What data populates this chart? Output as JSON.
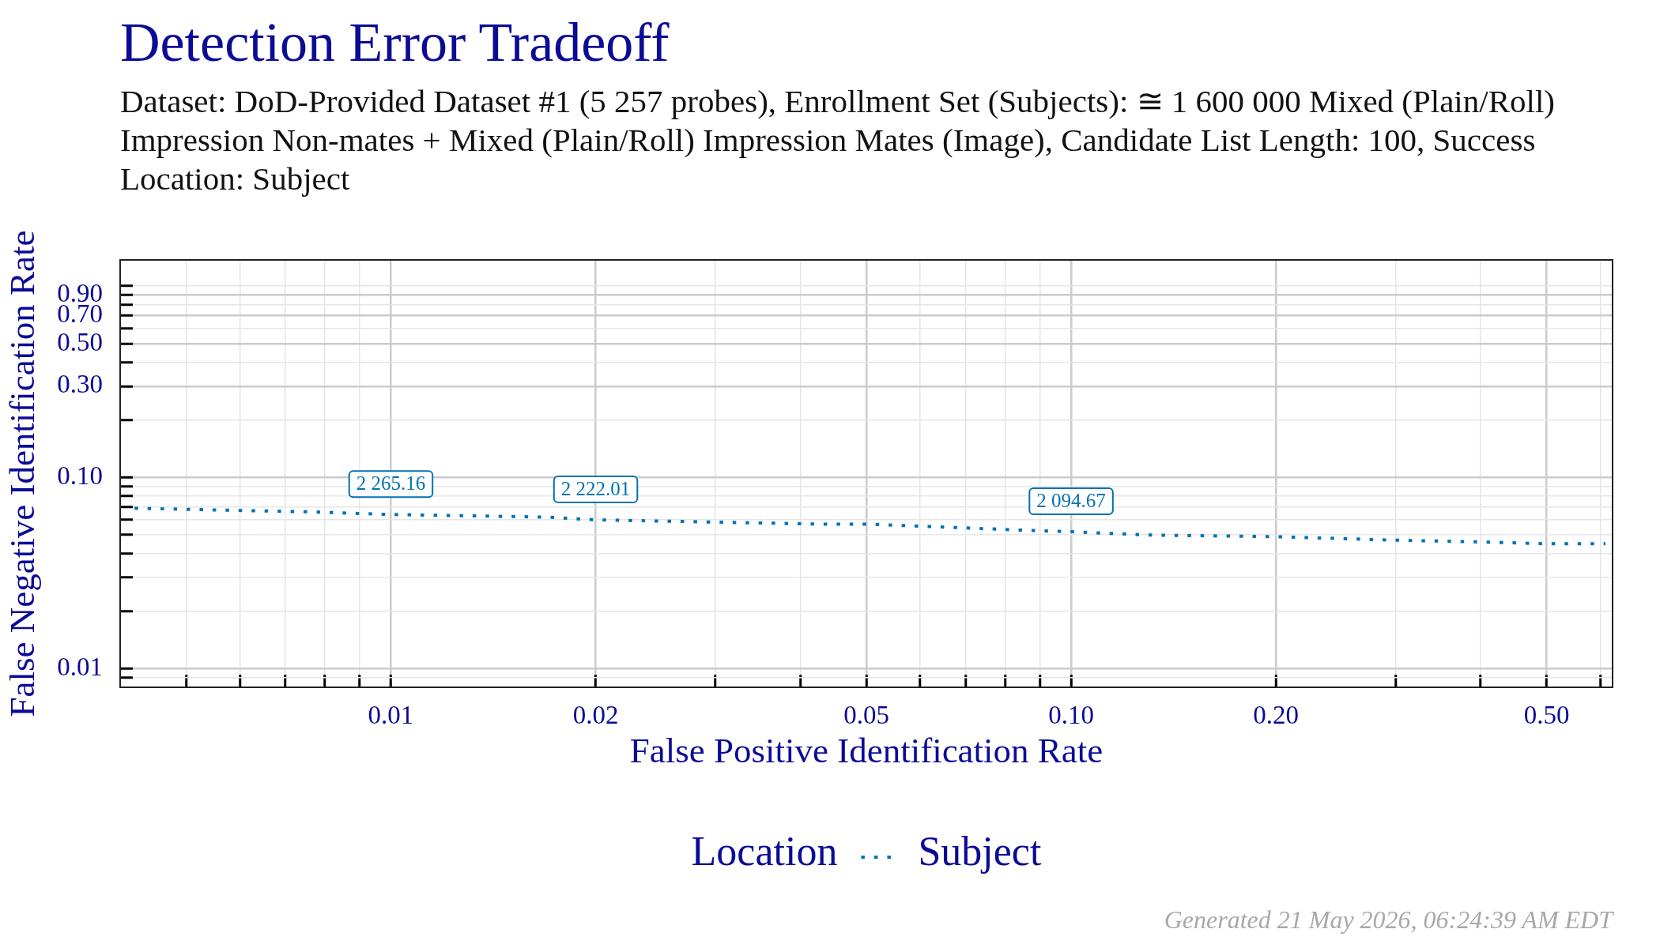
{
  "chart_data": {
    "type": "line",
    "title": "Detection Error Tradeoff",
    "subtitle": "Dataset: DoD-Provided Dataset #1 (5 257 probes), Enrollment Set (Subjects): ≅ 1 600 000 Mixed (Plain/Roll) Impression Non-mates + Mixed (Plain/Roll) Impression Mates (Image), Candidate List Length: 100, Success Location: Subject",
    "xlabel": "False Positive Identification Rate",
    "ylabel": "False Negative Identification Rate",
    "legend_title": "Location",
    "log": "xy",
    "x": [
      0.0042,
      0.0077,
      0.01,
      0.013,
      0.017,
      0.02,
      0.026,
      0.033,
      0.043,
      0.05,
      0.065,
      0.085,
      0.1,
      0.13,
      0.2,
      0.3,
      0.4,
      0.5,
      0.61
    ],
    "series": [
      {
        "name": "Subject",
        "color": "#0072b2",
        "values": [
          0.069,
          0.066,
          0.064,
          0.063,
          0.062,
          0.06,
          0.059,
          0.058,
          0.057,
          0.057,
          0.055,
          0.053,
          0.052,
          0.05,
          0.049,
          0.047,
          0.046,
          0.045,
          0.045
        ]
      }
    ],
    "xlim": [
      0.004,
      0.625
    ],
    "ylim": [
      0.008,
      1.37
    ],
    "xticks": [
      {
        "value": 0.005,
        "label": null
      },
      {
        "value": 0.006,
        "label": null
      },
      {
        "value": 0.007,
        "label": null
      },
      {
        "value": 0.008,
        "label": null
      },
      {
        "value": 0.009,
        "label": null
      },
      0.01,
      0.02,
      {
        "value": 0.03,
        "label": null
      },
      {
        "value": 0.04,
        "label": null
      },
      0.05,
      {
        "value": 0.06,
        "label": null
      },
      {
        "value": 0.07,
        "label": null
      },
      {
        "value": 0.08,
        "label": null
      },
      {
        "value": 0.09,
        "label": null
      },
      {
        "value": 0.1,
        "label": "0.10"
      },
      {
        "value": 0.2,
        "label": "0.20"
      },
      {
        "value": 0.3,
        "label": null
      },
      {
        "value": 0.4,
        "label": null
      },
      {
        "value": 0.5,
        "label": "0.50"
      },
      {
        "value": 0.6,
        "label": null
      }
    ],
    "yticks": [
      {
        "value": 0.009,
        "label": null
      },
      0.01,
      {
        "value": 0.02,
        "label": null
      },
      {
        "value": 0.03,
        "label": null
      },
      {
        "value": 0.04,
        "label": null
      },
      {
        "value": 0.05,
        "label": null
      },
      {
        "value": 0.06,
        "label": null
      },
      {
        "value": 0.07,
        "label": null
      },
      {
        "value": 0.08,
        "label": null
      },
      {
        "value": 0.09,
        "label": null
      },
      {
        "value": 0.1,
        "label": "0.10"
      },
      {
        "value": 0.2,
        "label": null
      },
      {
        "value": 0.3,
        "label": "0.30"
      },
      {
        "value": 0.4,
        "label": null
      },
      {
        "value": 0.5,
        "label": "0.50"
      },
      {
        "value": 0.6,
        "label": null
      },
      {
        "value": 0.7,
        "label": "0.70"
      },
      {
        "value": 0.8,
        "label": null
      },
      {
        "value": 0.9,
        "label": "0.90"
      },
      {
        "value": 1,
        "label": null
      }
    ],
    "grid": true,
    "legend": "bottom",
    "marker": "none",
    "line_style": "dotted",
    "annotations": [
      {
        "text": "2 265.16",
        "x": 0.01,
        "y": 0.064
      },
      {
        "text": "2 222.01",
        "x": 0.02,
        "y": 0.06
      },
      {
        "text": "2 094.67",
        "x": 0.1,
        "y": 0.052
      },
      "Generated 21 May 2026, 06:24:39 AM EDT"
    ]
  }
}
